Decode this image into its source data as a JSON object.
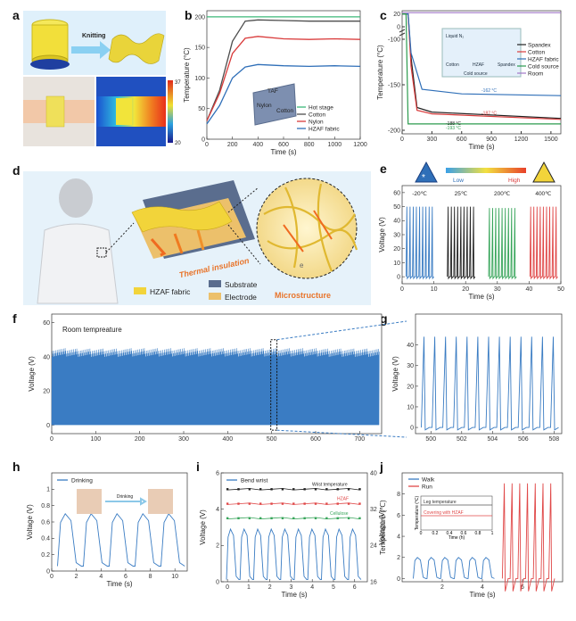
{
  "panel_letters": [
    "a",
    "b",
    "c",
    "d",
    "e",
    "f",
    "g",
    "h",
    "i",
    "j"
  ],
  "colors": {
    "hot": "#3cb878",
    "cotton": "#4d4d4d",
    "nylon": "#d93b3b",
    "hzaf": "#2f6fb8",
    "cold": "#2c9b4e",
    "room": "#a176c8",
    "blue": "#3a7cc3",
    "green": "#37a55a",
    "red": "#e04848",
    "black": "#222222"
  },
  "panel_a": {
    "knitting": "Knitting",
    "scale_max": "37",
    "scale_min": "20"
  },
  "panel_d": {
    "thermal": "Thermal insulation",
    "micro": "Microstructure",
    "legend": [
      "HZAF fabric",
      "Substrate",
      "Electrode"
    ],
    "e_label": "e"
  },
  "panel_e_icons": {
    "low": "Low",
    "high": "High"
  },
  "panel_h_extra": {
    "drinking": "Drinking"
  },
  "chart_data": [
    {
      "id": "b",
      "type": "line",
      "xlabel": "Time (s)",
      "ylabel": "Temperature (°C)",
      "xlim": [
        0,
        1200
      ],
      "ylim": [
        0,
        210
      ],
      "xticks": [
        0,
        200,
        400,
        600,
        800,
        1000,
        1200
      ],
      "yticks": [
        0,
        50,
        100,
        150,
        200
      ],
      "series": [
        {
          "name": "Hot stage",
          "color_key": "hot",
          "points": [
            [
              0,
              200
            ],
            [
              1200,
              200
            ]
          ]
        },
        {
          "name": "Cotton",
          "color_key": "cotton",
          "points": [
            [
              0,
              30
            ],
            [
              100,
              80
            ],
            [
              200,
              160
            ],
            [
              300,
              193
            ],
            [
              400,
              195
            ],
            [
              600,
              194
            ],
            [
              800,
              193
            ],
            [
              1000,
              193
            ],
            [
              1200,
              193
            ]
          ]
        },
        {
          "name": "Nylon",
          "color_key": "nylon",
          "points": [
            [
              0,
              30
            ],
            [
              100,
              75
            ],
            [
              200,
              140
            ],
            [
              300,
              165
            ],
            [
              400,
              168
            ],
            [
              600,
              164
            ],
            [
              800,
              163
            ],
            [
              1000,
              164
            ],
            [
              1200,
              163
            ]
          ]
        },
        {
          "name": "HZAF fabric",
          "color_key": "hzaf",
          "points": [
            [
              0,
              25
            ],
            [
              100,
              55
            ],
            [
              200,
              100
            ],
            [
              300,
              118
            ],
            [
              400,
              122
            ],
            [
              600,
              120
            ],
            [
              800,
              119
            ],
            [
              1000,
              120
            ],
            [
              1200,
              119
            ]
          ]
        }
      ],
      "inset_labels": [
        "TAF",
        "Nylon",
        "Cotton"
      ]
    },
    {
      "id": "c",
      "type": "line",
      "xlabel": "Time (s)",
      "ylabel": "Temperature (°C)",
      "xlim": [
        0,
        1600
      ],
      "ylim": [
        -200,
        25
      ],
      "xticks": [
        0,
        300,
        600,
        900,
        1200,
        1500
      ],
      "yticks": [
        -200,
        -150,
        -100,
        0,
        20
      ],
      "series": [
        {
          "name": "Spandex",
          "color_key": "black"
        },
        {
          "name": "Cotton",
          "color_key": "nylon"
        },
        {
          "name": "HZAF fabric",
          "color_key": "hzaf"
        },
        {
          "name": "Cold source",
          "color_key": "cold"
        },
        {
          "name": "Room",
          "color_key": "room"
        }
      ],
      "annotations": [
        "-162 °C",
        "-187 °C",
        "-188 °C",
        "-193 °C"
      ],
      "inset_labels": [
        "Liquid N₂",
        "Cold source",
        "Cotton",
        "HZAF",
        "Spandex"
      ]
    },
    {
      "id": "e",
      "type": "line",
      "xlabel": "Time (s)",
      "ylabel": "Voltage (V)",
      "xlim": [
        0,
        50
      ],
      "ylim": [
        -5,
        65
      ],
      "xticks": [
        0,
        10,
        20,
        30,
        40,
        50
      ],
      "yticks": [
        0,
        10,
        20,
        30,
        40,
        50,
        60
      ],
      "groups": [
        {
          "label": "-20℃",
          "color_key": "blue",
          "x0": 1,
          "x1": 10,
          "peak": 50
        },
        {
          "label": "25℃",
          "color_key": "black",
          "x0": 14,
          "x1": 23,
          "peak": 50
        },
        {
          "label": "200℃",
          "color_key": "green",
          "x0": 27,
          "x1": 36,
          "peak": 49
        },
        {
          "label": "400℃",
          "color_key": "red",
          "x0": 40,
          "x1": 49,
          "peak": 50
        }
      ]
    },
    {
      "id": "f",
      "type": "line",
      "title": "Room tempreature",
      "xlabel": "",
      "ylabel": "Voltage (V)",
      "xlim": [
        0,
        750
      ],
      "ylim": [
        -5,
        65
      ],
      "xticks": [
        0,
        100,
        200,
        300,
        400,
        500,
        600,
        700
      ],
      "yticks": [
        0,
        20,
        40,
        60
      ],
      "upper": 42,
      "lower": 0
    },
    {
      "id": "g",
      "type": "line",
      "xlabel": "",
      "ylabel": "Voltage (V)",
      "xlim": [
        499,
        508.5
      ],
      "ylim": [
        -3,
        55
      ],
      "xticks": [
        500,
        502,
        504,
        506,
        508
      ],
      "yticks": [
        0,
        10,
        20,
        30,
        40
      ],
      "peaks": 13,
      "peak": 44
    },
    {
      "id": "h",
      "type": "line",
      "xlabel": "Time (s)",
      "ylabel": "Voltage (V)",
      "xlim": [
        0,
        11
      ],
      "ylim": [
        0,
        1.2
      ],
      "xticks": [
        0,
        2,
        4,
        6,
        8,
        10
      ],
      "yticks": [
        0.0,
        0.2,
        0.4,
        0.6,
        0.8,
        1.0
      ],
      "legend": "Drinking",
      "peak": 0.7
    },
    {
      "id": "i",
      "type": "line",
      "xlabel": "Time (s)",
      "ylabel": "Voltage (V)",
      "y2label": "Temperature (℃)",
      "xlim": [
        -0.3,
        6.6
      ],
      "ylim": [
        0,
        6
      ],
      "xticks": [
        0,
        1,
        2,
        3,
        4,
        5,
        6
      ],
      "yticks": [
        0,
        2,
        4,
        6
      ],
      "y2ticks": [
        16,
        24,
        32,
        40
      ],
      "legend": "Bend wrist",
      "temps": [
        {
          "name": "Wrist temperature",
          "color_key": "black",
          "y": 5.1
        },
        {
          "name": "HZAF",
          "color_key": "red",
          "y": 4.3
        },
        {
          "name": "Cellulose",
          "color_key": "green",
          "y": 3.5
        }
      ],
      "peak": 2.9
    },
    {
      "id": "j",
      "type": "line",
      "xlabel": "Time (s)",
      "ylabel": "Voltage (V)",
      "xlim": [
        0,
        8
      ],
      "ylim": [
        -0.3,
        10
      ],
      "xticks": [
        2,
        4,
        6
      ],
      "yticks": [
        0,
        2,
        4,
        6,
        8
      ],
      "series": [
        {
          "name": "Walk",
          "color_key": "blue",
          "peak": 2
        },
        {
          "name": "Run",
          "color_key": "red",
          "peak": 9
        }
      ],
      "inset": {
        "xlabel": "Time (h)",
        "ylabel": "Temperature (℃)",
        "xticks": [
          0,
          0.2,
          0.4,
          0.6,
          0.8,
          1.0
        ],
        "lines": [
          "Leg temperature",
          "Covering with HZAF"
        ]
      }
    }
  ]
}
